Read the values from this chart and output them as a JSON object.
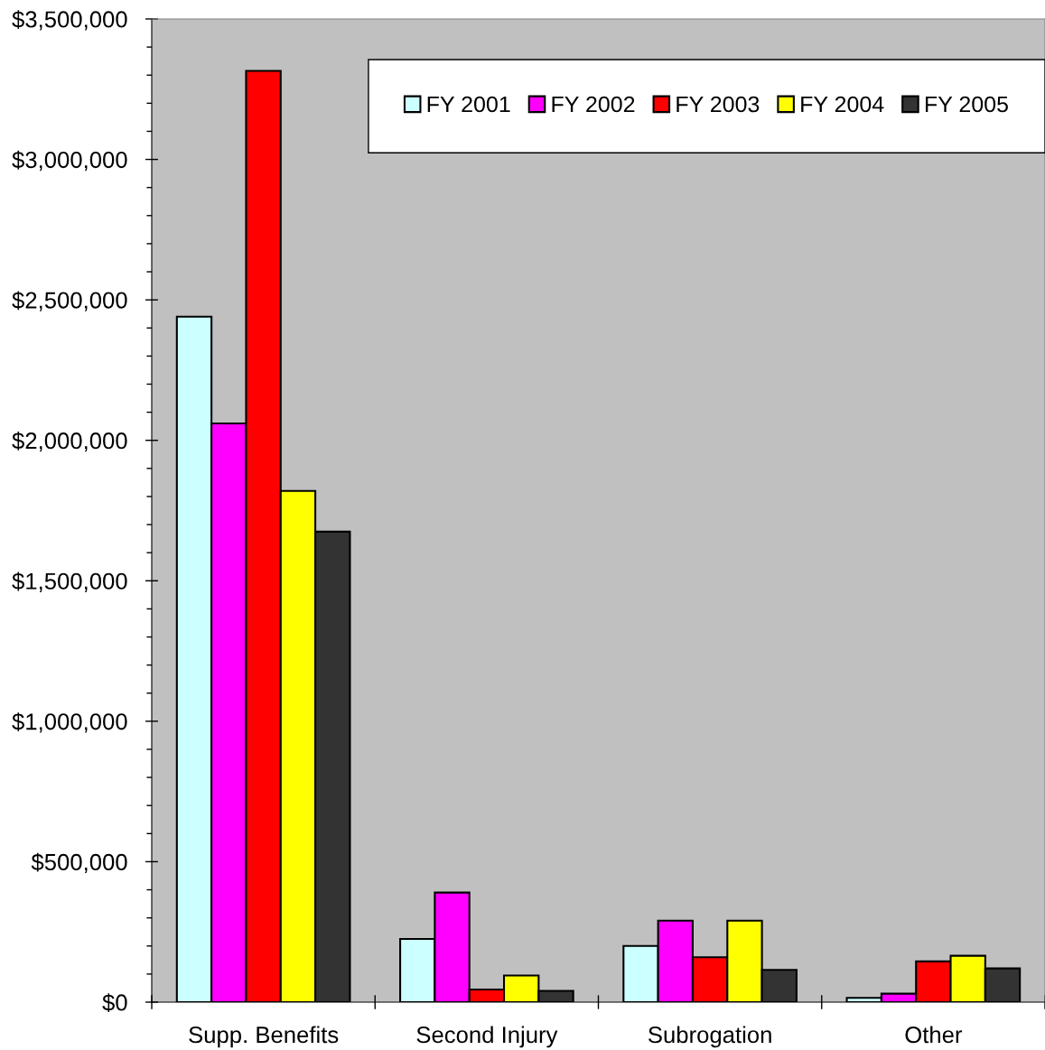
{
  "chart_data": {
    "type": "bar",
    "categories": [
      "Supp. Benefits",
      "Second Injury",
      "Subrogation",
      "Other"
    ],
    "series": [
      {
        "name": "FY 2001",
        "color": "#ccffff",
        "values": [
          2440000,
          225000,
          200000,
          15000
        ]
      },
      {
        "name": "FY 2002",
        "color": "#ff00ff",
        "values": [
          2060000,
          390000,
          290000,
          30000
        ]
      },
      {
        "name": "FY 2003",
        "color": "#ff0000",
        "values": [
          3315000,
          45000,
          160000,
          145000
        ]
      },
      {
        "name": "FY 2004",
        "color": "#ffff00",
        "values": [
          1820000,
          95000,
          290000,
          165000
        ]
      },
      {
        "name": "FY 2005",
        "color": "#333333",
        "values": [
          1675000,
          40000,
          115000,
          120000
        ]
      }
    ],
    "ylim": [
      0,
      3500000
    ],
    "yticks": [
      {
        "value": 0,
        "label": "$0"
      },
      {
        "value": 100000,
        "label": null
      },
      {
        "value": 200000,
        "label": null
      },
      {
        "value": 300000,
        "label": null
      },
      {
        "value": 400000,
        "label": null
      },
      {
        "value": 500000,
        "label": "$500,000"
      },
      {
        "value": 600000,
        "label": null
      },
      {
        "value": 700000,
        "label": null
      },
      {
        "value": 800000,
        "label": null
      },
      {
        "value": 900000,
        "label": null
      },
      {
        "value": 1000000,
        "label": "$1,000,000"
      },
      {
        "value": 1100000,
        "label": null
      },
      {
        "value": 1200000,
        "label": null
      },
      {
        "value": 1300000,
        "label": null
      },
      {
        "value": 1400000,
        "label": null
      },
      {
        "value": 1500000,
        "label": "$1,500,000"
      },
      {
        "value": 1600000,
        "label": null
      },
      {
        "value": 1700000,
        "label": null
      },
      {
        "value": 1800000,
        "label": null
      },
      {
        "value": 1900000,
        "label": null
      },
      {
        "value": 2000000,
        "label": "$2,000,000"
      },
      {
        "value": 2100000,
        "label": null
      },
      {
        "value": 2200000,
        "label": null
      },
      {
        "value": 2300000,
        "label": null
      },
      {
        "value": 2400000,
        "label": null
      },
      {
        "value": 2500000,
        "label": "$2,500,000"
      },
      {
        "value": 2600000,
        "label": null
      },
      {
        "value": 2700000,
        "label": null
      },
      {
        "value": 2800000,
        "label": null
      },
      {
        "value": 2900000,
        "label": null
      },
      {
        "value": 3000000,
        "label": "$3,000,000"
      },
      {
        "value": 3100000,
        "label": null
      },
      {
        "value": 3200000,
        "label": null
      },
      {
        "value": 3300000,
        "label": null
      },
      {
        "value": 3400000,
        "label": null
      },
      {
        "value": 3500000,
        "label": "$3,500,000"
      }
    ],
    "legend": "top right",
    "grid": false
  }
}
